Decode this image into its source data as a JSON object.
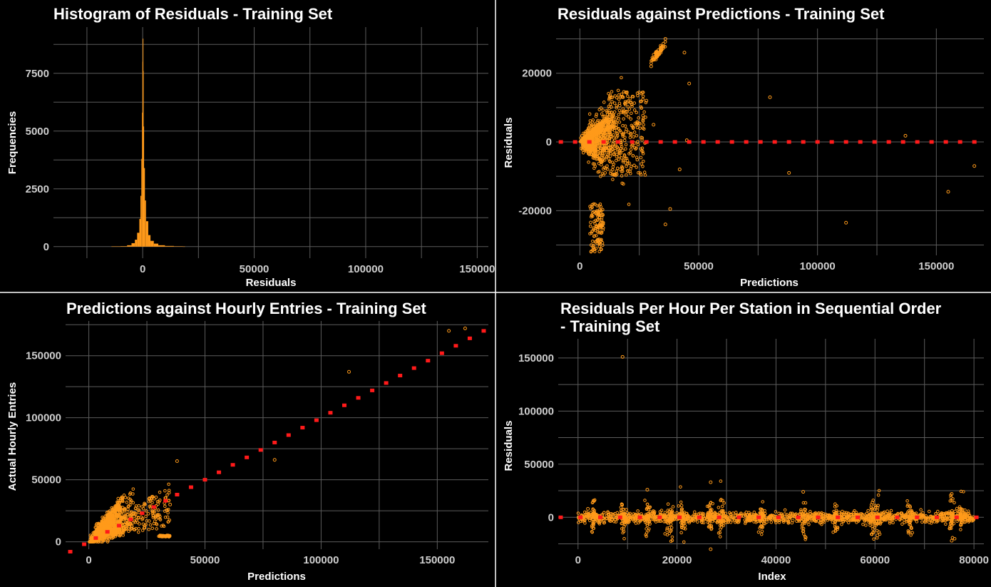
{
  "colors": {
    "background": "#000000",
    "points": "#ff9a1a",
    "reference": "#ff1a1a",
    "grid": "#5c5c5c",
    "divider": "#ffffff"
  },
  "chart_data": [
    {
      "id": "hist",
      "type": "bar",
      "title": "Histogram of Residuals - Training Set",
      "title2": "",
      "xlabel": "Residuals",
      "ylabel": "Frequencies",
      "xlim": [
        -40000,
        155000
      ],
      "ylim": [
        -500,
        9500
      ],
      "xticks": [
        0,
        50000,
        100000,
        150000
      ],
      "xtick_labels": [
        "0",
        "50000",
        "100000",
        "150000"
      ],
      "yticks": [
        0,
        2500,
        5000,
        7500
      ],
      "ytick_labels": [
        "0",
        "2500",
        "5000",
        "7500"
      ],
      "bins": {
        "x": [
          -14000,
          -10000,
          -7000,
          -5000,
          -3500,
          -2500,
          -1500,
          -1000,
          -600,
          -300,
          -100,
          0,
          100,
          300,
          600,
          1000,
          1500,
          2500,
          3500,
          5000,
          7000,
          10000,
          14000,
          18000
        ],
        "counts": [
          8,
          20,
          60,
          150,
          300,
          600,
          1200,
          2200,
          3800,
          5800,
          8000,
          9000,
          7600,
          5200,
          3400,
          2000,
          1100,
          500,
          250,
          130,
          60,
          30,
          15,
          6
        ]
      }
    },
    {
      "id": "resid-pred",
      "type": "scatter",
      "title": "Residuals against Predictions - Training Set",
      "title2": "",
      "xlabel": "Predictions",
      "ylabel": "Residuals",
      "xlim": [
        -10000,
        170000
      ],
      "ylim": [
        -33000,
        33000
      ],
      "xticks": [
        0,
        50000,
        100000,
        150000
      ],
      "xtick_labels": [
        "0",
        "50000",
        "100000",
        "150000"
      ],
      "yticks": [
        -20000,
        0,
        20000
      ],
      "ytick_labels": [
        "-20000",
        "0",
        "20000"
      ],
      "reference": {
        "x": [
          -8000,
          -2000,
          4000,
          10000,
          16000,
          22000,
          28000,
          34000,
          40000,
          46000,
          52000,
          58000,
          64000,
          70000,
          76000,
          82000,
          88000,
          94000,
          100000,
          106000,
          112000,
          118000,
          124000,
          130000,
          136000,
          142000,
          148000,
          154000,
          160000,
          166000
        ],
        "y": 0
      },
      "points": [
        [
          80000,
          13000
        ],
        [
          88000,
          -9000
        ],
        [
          112000,
          -23500
        ],
        [
          137000,
          1800
        ],
        [
          155000,
          -14500
        ],
        [
          166000,
          -7000
        ],
        [
          44000,
          26000
        ],
        [
          46000,
          17000
        ],
        [
          45000,
          500
        ],
        [
          42000,
          -8000
        ],
        [
          38000,
          -19500
        ],
        [
          36000,
          -24000
        ],
        [
          30000,
          22000
        ],
        [
          32000,
          24000
        ],
        [
          34000,
          28000
        ],
        [
          36000,
          30000
        ],
        [
          28000,
          12000
        ],
        [
          31000,
          5000
        ]
      ]
    },
    {
      "id": "pred-entries",
      "type": "scatter",
      "title": "Predictions against Hourly Entries - Training Set",
      "title2": "",
      "xlabel": "Predictions",
      "ylabel": "Actual Hourly Entries",
      "xlim": [
        -10000,
        172000
      ],
      "ylim": [
        -6000,
        178000
      ],
      "xticks": [
        0,
        50000,
        100000,
        150000
      ],
      "xtick_labels": [
        "0",
        "50000",
        "100000",
        "150000"
      ],
      "yticks": [
        0,
        50000,
        100000,
        150000
      ],
      "ytick_labels": [
        "0",
        "50000",
        "100000",
        "150000"
      ],
      "reference": {
        "x": [
          -8000,
          -2000,
          3000,
          8000,
          13000,
          18000,
          23000,
          28000,
          33000,
          38000,
          44000,
          50000,
          56000,
          62000,
          68000,
          74000,
          80000,
          86000,
          92000,
          98000,
          104000,
          110000,
          116000,
          122000,
          128000,
          134000,
          140000,
          146000,
          152000,
          158000,
          164000,
          170000
        ]
      },
      "points": [
        [
          112000,
          137000
        ],
        [
          155000,
          170000
        ],
        [
          162000,
          172000
        ],
        [
          80000,
          66000
        ],
        [
          38000,
          65000
        ],
        [
          35000,
          30000
        ],
        [
          33000,
          4500
        ]
      ]
    },
    {
      "id": "resid-index",
      "type": "scatter",
      "title": "Residuals Per Hour Per Station in Sequential Order",
      "title2": " - Training Set",
      "xlabel": "Index",
      "ylabel": "Residuals",
      "xlim": [
        -4000,
        82000
      ],
      "ylim": [
        -30000,
        168000
      ],
      "xticks": [
        0,
        20000,
        40000,
        60000,
        80000
      ],
      "xtick_labels": [
        "0",
        "20000",
        "40000",
        "60000",
        "80000"
      ],
      "yticks": [
        0,
        50000,
        100000,
        150000
      ],
      "ytick_labels": [
        "0",
        "50000",
        "100000",
        "150000"
      ],
      "reference": {
        "x": [
          -3500,
          500,
          4500,
          8500,
          12500,
          16500,
          20500,
          24500,
          28500,
          32500,
          36500,
          40500,
          44500,
          48500,
          52500,
          56500,
          60500,
          64500,
          68500,
          72500,
          76500,
          80500
        ],
        "y": 0
      },
      "points": [
        [
          9000,
          151000
        ],
        [
          26800,
          33000
        ],
        [
          26800,
          -30000
        ],
        [
          75500,
          22000
        ],
        [
          75500,
          -22000
        ],
        [
          14000,
          26000
        ],
        [
          45500,
          24000
        ],
        [
          59500,
          14000
        ],
        [
          60500,
          -17000
        ],
        [
          46000,
          -19000
        ],
        [
          18000,
          -12000
        ],
        [
          2000,
          8000
        ]
      ]
    }
  ]
}
